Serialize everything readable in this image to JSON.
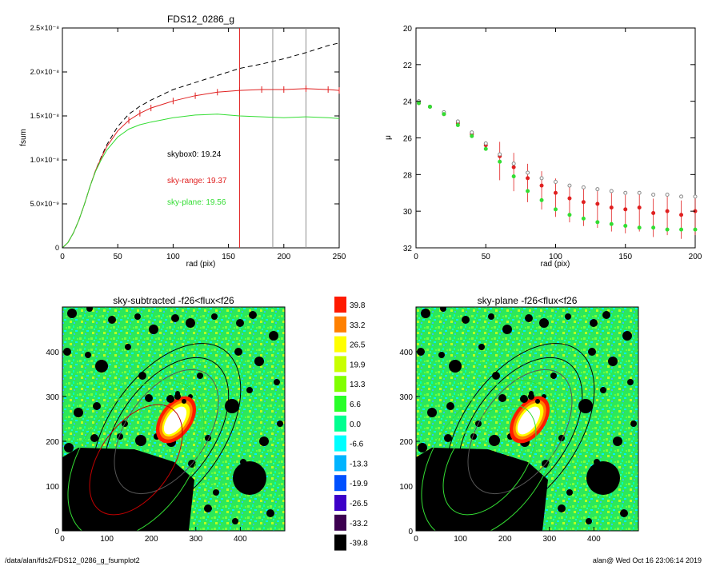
{
  "footer": {
    "path": "/data/alan/fds2/FDS12_0286_g_fsumplot2",
    "stamp": "alan@  Wed Oct 16 23:06:14 2019"
  },
  "colorbar": {
    "labels": [
      "39.8",
      "33.2",
      "26.5",
      "19.9",
      "13.3",
      "6.6",
      "0.0",
      "-6.6",
      "-13.3",
      "-19.9",
      "-26.5",
      "-33.2",
      "-39.8"
    ],
    "colors": [
      "#ff1a00",
      "#ff8000",
      "#ffff00",
      "#c8ff00",
      "#80ff00",
      "#28ff28",
      "#00ff90",
      "#00ffff",
      "#00b4ff",
      "#0050ff",
      "#3c00c8",
      "#3c0050",
      "#000000"
    ]
  },
  "chart_data": [
    {
      "type": "line",
      "title": "FDS12_0286_g",
      "xlabel": "rad (pix)",
      "ylabel": "fsum",
      "xlim": [
        0,
        250
      ],
      "ylim": [
        0,
        2.5e-08
      ],
      "xticks": [
        "0",
        "50",
        "100",
        "150",
        "200",
        "250"
      ],
      "yticks": [
        "0",
        "5.0×10⁻⁹",
        "1.0×10⁻⁸",
        "1.5×10⁻⁸",
        "2.0×10⁻⁸",
        "2.5×10⁻⁸"
      ],
      "vlines": [
        {
          "x": 160,
          "color": "#e02020"
        },
        {
          "x": 190,
          "color": "#909090"
        },
        {
          "x": 220,
          "color": "#909090"
        }
      ],
      "annotations": [
        {
          "text": "skybox0: 19.24",
          "color": "#000000"
        },
        {
          "text": "sky-range: 19.37",
          "color": "#e02020"
        },
        {
          "text": "sky-plane: 19.56",
          "color": "#33dd33"
        }
      ],
      "series": [
        {
          "style": "dashed",
          "color": "#000000",
          "x": [
            0,
            5,
            10,
            15,
            20,
            25,
            30,
            35,
            40,
            50,
            60,
            70,
            80,
            100,
            120,
            140,
            160,
            180,
            200,
            220,
            240,
            250
          ],
          "y": [
            0,
            6e-10,
            1.7e-09,
            3.2e-09,
            5e-09,
            7e-09,
            8.8e-09,
            1.03e-08,
            1.17e-08,
            1.38e-08,
            1.52e-08,
            1.61e-08,
            1.68e-08,
            1.8e-08,
            1.88e-08,
            1.96e-08,
            2.04e-08,
            2.09e-08,
            2.15e-08,
            2.22e-08,
            2.3e-08,
            2.33e-08
          ]
        },
        {
          "style": "solid",
          "color": "#e02020",
          "x": [
            0,
            5,
            10,
            15,
            20,
            25,
            30,
            35,
            40,
            50,
            60,
            70,
            80,
            100,
            120,
            140,
            160,
            180,
            200,
            220,
            240,
            250
          ],
          "y": [
            0,
            6e-10,
            1.7e-09,
            3.2e-09,
            5e-09,
            7e-09,
            8.8e-09,
            1.02e-08,
            1.15e-08,
            1.33e-08,
            1.45e-08,
            1.53e-08,
            1.59e-08,
            1.67e-08,
            1.73e-08,
            1.77e-08,
            1.79e-08,
            1.8e-08,
            1.8e-08,
            1.81e-08,
            1.8e-08,
            1.79e-08
          ]
        },
        {
          "style": "solid",
          "color": "#33dd33",
          "x": [
            0,
            5,
            10,
            15,
            20,
            25,
            30,
            35,
            40,
            50,
            60,
            70,
            80,
            100,
            120,
            140,
            160,
            180,
            200,
            220,
            240,
            250
          ],
          "y": [
            0,
            6e-10,
            1.7e-09,
            3.2e-09,
            5e-09,
            7e-09,
            8.7e-09,
            1e-08,
            1.11e-08,
            1.26e-08,
            1.35e-08,
            1.4e-08,
            1.43e-08,
            1.48e-08,
            1.51e-08,
            1.52e-08,
            1.5e-08,
            1.49e-08,
            1.48e-08,
            1.49e-08,
            1.48e-08,
            1.47e-08
          ]
        }
      ]
    },
    {
      "type": "scatter",
      "title": "",
      "xlabel": "rad (pix)",
      "ylabel": "μ",
      "xlim": [
        0,
        200
      ],
      "ylim": [
        32,
        20
      ],
      "xticks": [
        "0",
        "50",
        "100",
        "150",
        "200"
      ],
      "yticks": [
        "20",
        "22",
        "24",
        "26",
        "28",
        "30",
        "32"
      ],
      "series": [
        {
          "color": "#e02020",
          "x": [
            2,
            10,
            20,
            30,
            40,
            50,
            60,
            70,
            80,
            90,
            100,
            110,
            120,
            130,
            140,
            150,
            160,
            170,
            180,
            190,
            200
          ],
          "y": [
            24.1,
            24.3,
            24.7,
            25.2,
            25.8,
            26.4,
            27.0,
            27.6,
            28.2,
            28.6,
            29.0,
            29.3,
            29.5,
            29.6,
            29.8,
            29.9,
            29.8,
            30.1,
            30.0,
            30.2,
            30.0
          ]
        },
        {
          "color": "#888888",
          "x": [
            2,
            10,
            20,
            30,
            40,
            50,
            60,
            70,
            80,
            90,
            100,
            110,
            120,
            130,
            140,
            150,
            160,
            170,
            180,
            190,
            200
          ],
          "y": [
            24.0,
            24.3,
            24.6,
            25.1,
            25.7,
            26.3,
            26.9,
            27.4,
            27.9,
            28.2,
            28.4,
            28.6,
            28.7,
            28.8,
            28.9,
            29.0,
            29.0,
            29.1,
            29.1,
            29.2,
            29.2
          ]
        },
        {
          "color": "#33dd33",
          "x": [
            2,
            10,
            20,
            30,
            40,
            50,
            60,
            70,
            80,
            90,
            100,
            110,
            120,
            130,
            140,
            150,
            160,
            170,
            180,
            190,
            200
          ],
          "y": [
            24.1,
            24.3,
            24.7,
            25.3,
            25.9,
            26.6,
            27.3,
            28.1,
            28.9,
            29.4,
            29.9,
            30.2,
            30.4,
            30.6,
            30.7,
            30.8,
            30.9,
            30.9,
            31.0,
            31.0,
            31.0
          ]
        }
      ]
    },
    {
      "type": "heatmap",
      "title": "sky-subtracted -f26<flux<f26",
      "xlim": [
        0,
        500
      ],
      "ylim": [
        0,
        500
      ],
      "xticks": [
        "0",
        "100",
        "200",
        "300",
        "400"
      ],
      "yticks": [
        "0",
        "100",
        "200",
        "300",
        "400"
      ]
    },
    {
      "type": "heatmap",
      "title": "sky-plane -f26<flux<f26",
      "xlim": [
        0,
        500
      ],
      "ylim": [
        0,
        500
      ],
      "xticks": [
        "0",
        "100",
        "200",
        "300",
        "400"
      ],
      "yticks": [
        "0",
        "100",
        "200",
        "300",
        "400"
      ]
    }
  ]
}
